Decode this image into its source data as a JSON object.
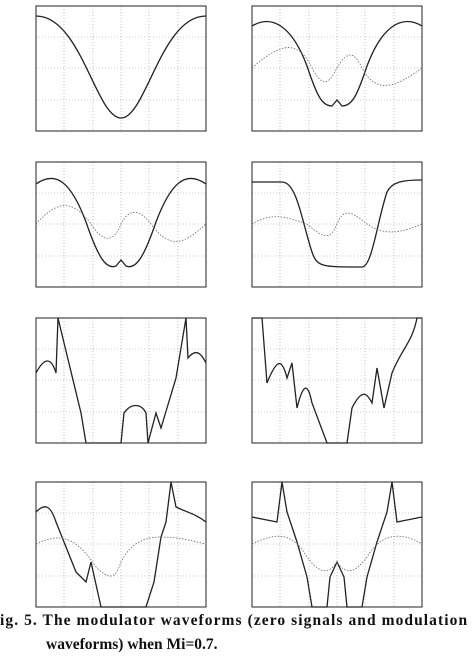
{
  "caption": [
    "ig. 5. The modulator waveforms (zero signals and modulation",
    "waveforms) when Mi=0.7."
  ]
}
